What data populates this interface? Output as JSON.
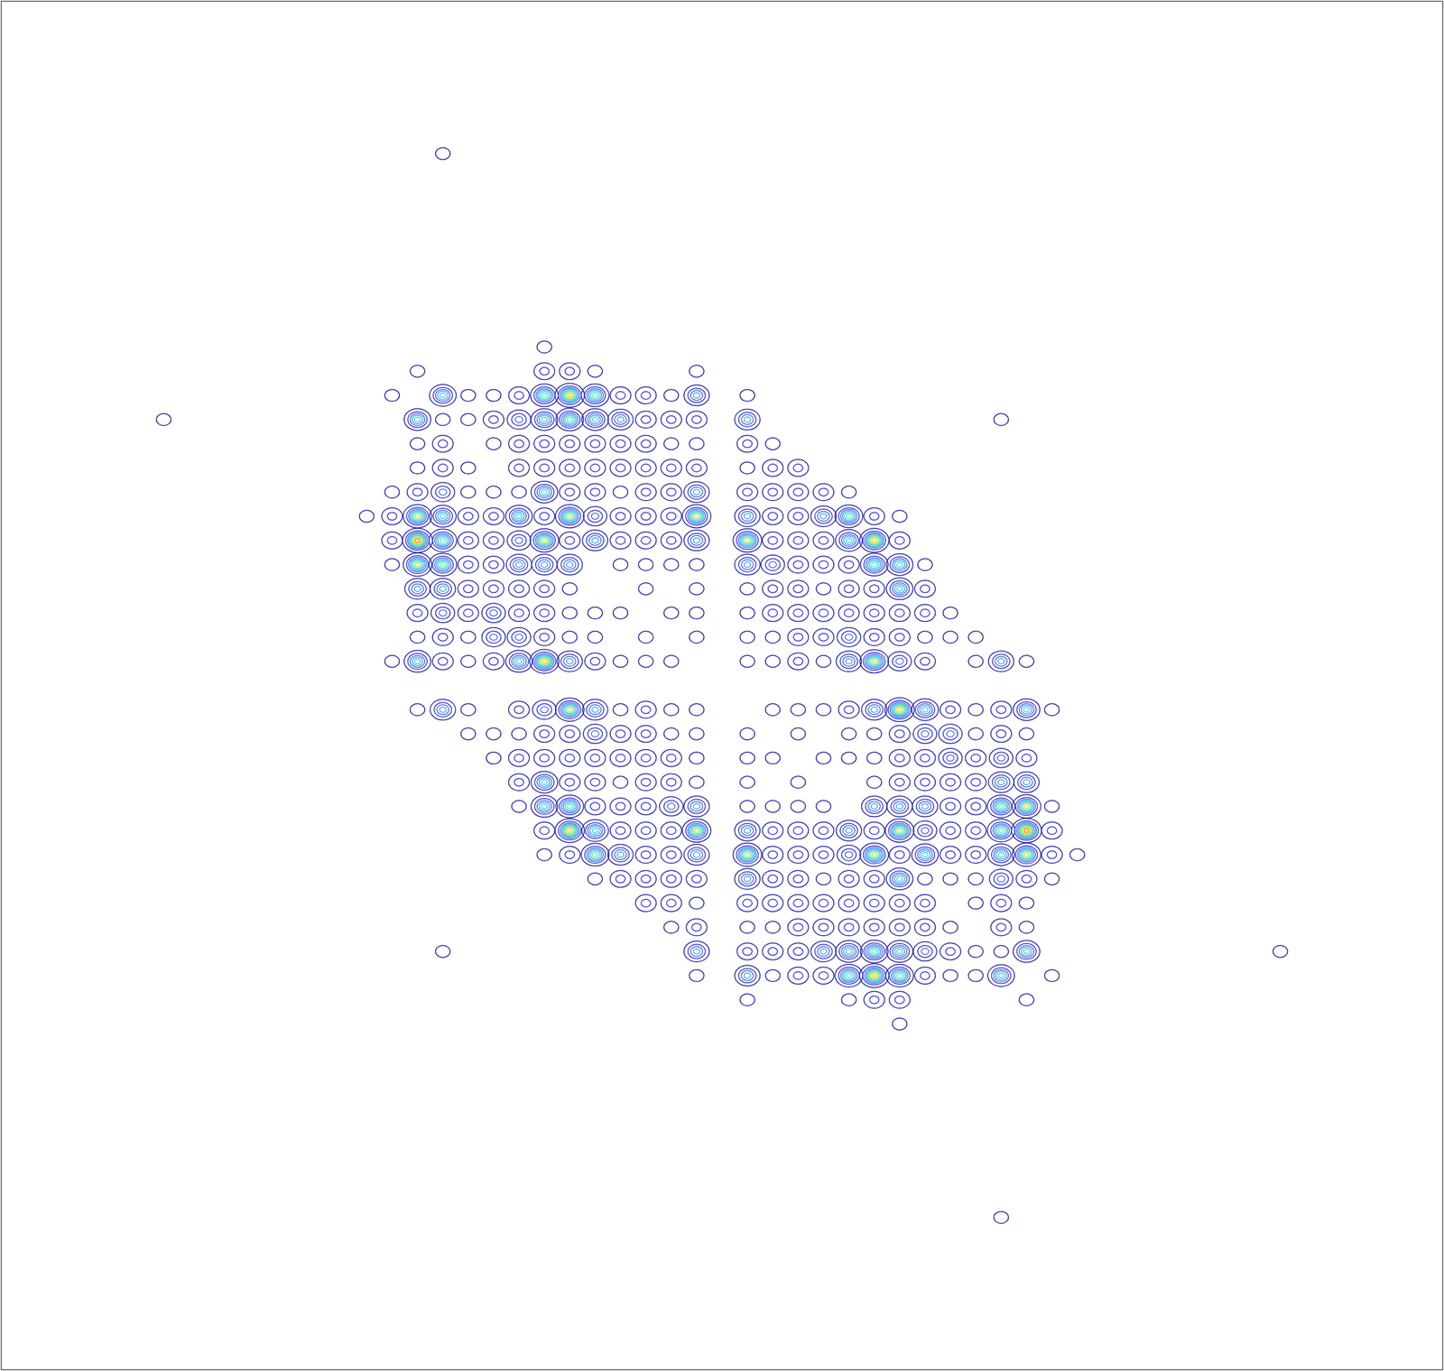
{
  "chart_data": {
    "type": "contour",
    "tick_labels": false,
    "grid": false,
    "xlim": [
      -28.4,
      28.4
    ],
    "ylim": [
      -28.3,
      28.3
    ],
    "levels": [
      0.5,
      1.5,
      2.5,
      3.5,
      4.5,
      5.5,
      6.5,
      7.5,
      8.5,
      9.5
    ],
    "colors": [
      "#2a2aa8",
      "#3b3bd8",
      "#4a70ea",
      "#3fa2f2",
      "#2fd2e6",
      "#5fe0a0",
      "#b8e040",
      "#f0d020",
      "#f08020",
      "#e02020"
    ],
    "rows": [
      {
        "y": 22,
        "x": [
          -11
        ],
        "values": [
          1
        ]
      },
      {
        "y": 11,
        "x": [
          -22,
          11
        ],
        "values": [
          1,
          1
        ]
      },
      {
        "y": 14,
        "x": [
          -7
        ],
        "values": [
          1
        ]
      },
      {
        "y": 13,
        "x": [
          -12,
          -7,
          -6,
          -5,
          -1
        ],
        "values": [
          1,
          2,
          2,
          1,
          1
        ]
      },
      {
        "y": 12,
        "x": [
          -13,
          -11,
          -10,
          -9,
          -8,
          -7,
          -6,
          -5,
          -4,
          -3,
          -2,
          -1,
          1
        ],
        "values": [
          1,
          5,
          1,
          1,
          2,
          6,
          8,
          6,
          2,
          2,
          1,
          4,
          1
        ]
      },
      {
        "y": 11,
        "x": [
          -12,
          -11,
          -10,
          -9,
          -8,
          -7,
          -6,
          -5,
          -4,
          -3,
          -2,
          -1,
          1
        ],
        "values": [
          5,
          1,
          1,
          2,
          3,
          5,
          6,
          5,
          4,
          2,
          2,
          2,
          4
        ]
      },
      {
        "y": 10,
        "x": [
          -12,
          -11,
          -9,
          -8,
          -7,
          -6,
          -5,
          -4,
          -3,
          -2,
          -1,
          1,
          2
        ],
        "values": [
          1,
          2,
          1,
          2,
          2,
          2,
          2,
          2,
          2,
          1,
          1,
          2,
          1
        ]
      },
      {
        "y": 9,
        "x": [
          -12,
          -11,
          -10,
          -8,
          -7,
          -6,
          -5,
          -4,
          -3,
          -2,
          -1,
          1,
          2,
          3
        ],
        "values": [
          1,
          2,
          1,
          2,
          2,
          2,
          2,
          2,
          2,
          2,
          2,
          1,
          2,
          2
        ]
      },
      {
        "y": 8,
        "x": [
          -13,
          -12,
          -11,
          -10,
          -9,
          -8,
          -7,
          -6,
          -5,
          -4,
          -3,
          -2,
          -1,
          1,
          2,
          3,
          4,
          5
        ],
        "values": [
          1,
          2,
          3,
          1,
          1,
          1,
          5,
          2,
          2,
          1,
          2,
          2,
          4,
          2,
          2,
          2,
          2,
          1
        ]
      },
      {
        "y": 7,
        "x": [
          -14,
          -13,
          -12,
          -11,
          -10,
          -9,
          -8,
          -7,
          -6,
          -5,
          -4,
          -3,
          -2,
          -1,
          1,
          2,
          3,
          4,
          5,
          6,
          7
        ],
        "values": [
          1,
          2,
          7,
          5,
          2,
          2,
          5,
          2,
          7,
          3,
          2,
          2,
          2,
          7,
          4,
          2,
          2,
          4,
          6,
          2,
          1
        ]
      },
      {
        "y": 6,
        "x": [
          -13,
          -12,
          -11,
          -10,
          -9,
          -8,
          -7,
          -6,
          -5,
          -4,
          -3,
          -2,
          -1,
          1,
          2,
          3,
          4,
          5,
          6,
          7
        ],
        "values": [
          2,
          9,
          6,
          2,
          2,
          3,
          7,
          2,
          4,
          2,
          2,
          2,
          4,
          7,
          2,
          2,
          2,
          5,
          8,
          2
        ]
      },
      {
        "y": 5,
        "x": [
          -13,
          -12,
          -11,
          -10,
          -9,
          -8,
          -7,
          -6,
          -4,
          -3,
          -2,
          -1,
          1,
          2,
          3,
          4,
          5,
          6,
          7,
          8
        ],
        "values": [
          1,
          7,
          6,
          2,
          2,
          4,
          4,
          4,
          1,
          1,
          1,
          1,
          4,
          3,
          2,
          2,
          2,
          6,
          5,
          1
        ]
      },
      {
        "y": 4,
        "x": [
          -12,
          -11,
          -10,
          -9,
          -8,
          -7,
          -6,
          -3,
          -1,
          1,
          2,
          3,
          4,
          5,
          6,
          7,
          8
        ],
        "values": [
          4,
          4,
          2,
          2,
          2,
          2,
          1,
          1,
          1,
          1,
          2,
          2,
          1,
          2,
          2,
          5,
          2
        ]
      },
      {
        "y": 3,
        "x": [
          -12,
          -11,
          -10,
          -9,
          -8,
          -7,
          -6,
          -5,
          -4,
          -2,
          -1,
          1,
          2,
          3,
          4,
          5,
          6,
          7,
          8,
          9
        ],
        "values": [
          2,
          3,
          2,
          3,
          2,
          2,
          1,
          1,
          1,
          1,
          1,
          1,
          2,
          2,
          2,
          2,
          2,
          2,
          2,
          1
        ]
      },
      {
        "y": 2,
        "x": [
          -12,
          -11,
          -10,
          -9,
          -8,
          -7,
          -6,
          -5,
          -3,
          -1,
          1,
          2,
          3,
          4,
          5,
          6,
          7,
          8,
          9,
          10
        ],
        "values": [
          1,
          2,
          1,
          3,
          3,
          2,
          1,
          1,
          1,
          1,
          1,
          1,
          2,
          2,
          3,
          2,
          2,
          1,
          1,
          1
        ]
      },
      {
        "y": 1,
        "x": [
          -13,
          -12,
          -11,
          -10,
          -9,
          -8,
          -7,
          -6,
          -5,
          -4,
          -3,
          -2,
          1,
          2,
          3,
          4,
          5,
          6,
          7,
          8,
          10,
          11,
          12
        ],
        "values": [
          1,
          5,
          2,
          1,
          2,
          5,
          8,
          4,
          2,
          1,
          1,
          1,
          1,
          1,
          2,
          1,
          4,
          7,
          3,
          2,
          1,
          4,
          1
        ]
      },
      {
        "y": -1,
        "x": [
          -12,
          -11,
          -10,
          -8,
          -7,
          -6,
          -5,
          -4,
          -3,
          -2,
          -1,
          2,
          3,
          4,
          5,
          6,
          7,
          8,
          9,
          10,
          11,
          12,
          13
        ],
        "values": [
          1,
          4,
          1,
          2,
          3,
          7,
          4,
          1,
          2,
          1,
          1,
          1,
          1,
          1,
          2,
          4,
          8,
          5,
          2,
          1,
          2,
          5,
          1
        ]
      },
      {
        "y": -2,
        "x": [
          -10,
          -9,
          -8,
          -7,
          -6,
          -5,
          -4,
          -3,
          -2,
          -1,
          1,
          3,
          5,
          6,
          7,
          8,
          9,
          10,
          11,
          12
        ],
        "values": [
          1,
          1,
          1,
          2,
          2,
          3,
          2,
          2,
          1,
          1,
          1,
          1,
          1,
          1,
          2,
          3,
          3,
          1,
          2,
          1
        ]
      },
      {
        "y": -3,
        "x": [
          -9,
          -8,
          -7,
          -6,
          -5,
          -4,
          -3,
          -2,
          -1,
          1,
          2,
          4,
          5,
          6,
          7,
          8,
          9,
          10,
          11,
          12
        ],
        "values": [
          1,
          2,
          2,
          2,
          2,
          2,
          2,
          2,
          1,
          1,
          1,
          1,
          1,
          1,
          2,
          2,
          3,
          2,
          3,
          2
        ]
      },
      {
        "y": -4,
        "x": [
          -8,
          -7,
          -6,
          -5,
          -4,
          -3,
          -2,
          -1,
          1,
          3,
          6,
          7,
          8,
          9,
          10,
          11,
          12
        ],
        "values": [
          2,
          5,
          2,
          2,
          1,
          2,
          2,
          1,
          1,
          1,
          1,
          2,
          2,
          2,
          2,
          4,
          4
        ]
      },
      {
        "y": -5,
        "x": [
          -8,
          -7,
          -6,
          -5,
          -4,
          -3,
          -2,
          -1,
          1,
          2,
          3,
          4,
          6,
          7,
          8,
          9,
          10,
          11,
          12,
          13
        ],
        "values": [
          1,
          5,
          6,
          2,
          2,
          2,
          3,
          4,
          1,
          1,
          1,
          1,
          4,
          4,
          4,
          2,
          2,
          6,
          7,
          1
        ]
      },
      {
        "y": -6,
        "x": [
          -7,
          -6,
          -5,
          -4,
          -3,
          -2,
          -1,
          1,
          2,
          3,
          4,
          5,
          6,
          7,
          8,
          9,
          10,
          11,
          12,
          13
        ],
        "values": [
          2,
          8,
          5,
          2,
          2,
          2,
          7,
          4,
          2,
          2,
          2,
          4,
          2,
          7,
          3,
          2,
          2,
          6,
          9,
          2
        ]
      },
      {
        "y": -7,
        "x": [
          -7,
          -6,
          -5,
          -4,
          -3,
          -2,
          -1,
          1,
          2,
          3,
          4,
          5,
          6,
          7,
          8,
          9,
          10,
          11,
          12,
          13,
          14
        ],
        "values": [
          1,
          2,
          6,
          4,
          2,
          2,
          4,
          7,
          2,
          2,
          2,
          3,
          7,
          2,
          5,
          2,
          2,
          5,
          7,
          2,
          1
        ]
      },
      {
        "y": -8,
        "x": [
          -5,
          -4,
          -3,
          -2,
          -1,
          1,
          2,
          3,
          4,
          5,
          6,
          7,
          8,
          9,
          10,
          11,
          12,
          13
        ],
        "values": [
          1,
          2,
          2,
          2,
          2,
          4,
          2,
          2,
          1,
          2,
          2,
          5,
          1,
          1,
          1,
          3,
          2,
          1
        ]
      },
      {
        "y": -9,
        "x": [
          -3,
          -2,
          -1,
          1,
          2,
          3,
          4,
          5,
          6,
          7,
          8,
          10,
          11,
          12
        ],
        "values": [
          2,
          2,
          1,
          2,
          2,
          2,
          2,
          2,
          2,
          2,
          2,
          1,
          2,
          1
        ]
      },
      {
        "y": -10,
        "x": [
          -2,
          -1,
          1,
          2,
          3,
          4,
          5,
          6,
          7,
          8,
          9,
          11,
          12
        ],
        "values": [
          1,
          2,
          1,
          1,
          2,
          2,
          2,
          2,
          2,
          2,
          1,
          2,
          1
        ]
      },
      {
        "y": -11,
        "x": [
          -1,
          1,
          2,
          3,
          4,
          5,
          6,
          7,
          8,
          9,
          10,
          11,
          12
        ],
        "values": [
          4,
          2,
          2,
          2,
          4,
          5,
          6,
          5,
          3,
          2,
          1,
          1,
          5
        ]
      },
      {
        "y": -12,
        "x": [
          -1,
          1,
          2,
          3,
          4,
          5,
          6,
          7,
          8,
          9,
          10,
          11,
          13
        ],
        "values": [
          1,
          4,
          1,
          2,
          2,
          6,
          8,
          6,
          2,
          1,
          1,
          5,
          1
        ]
      },
      {
        "y": -13,
        "x": [
          1,
          5,
          6,
          7,
          12
        ],
        "values": [
          1,
          1,
          2,
          2,
          1
        ]
      },
      {
        "y": -14,
        "x": [
          7
        ],
        "values": [
          1
        ]
      },
      {
        "y": -11,
        "x": [
          -11,
          22
        ],
        "values": [
          1,
          1
        ]
      },
      {
        "y": -22,
        "x": [
          11
        ],
        "values": [
          1
        ]
      }
    ]
  }
}
